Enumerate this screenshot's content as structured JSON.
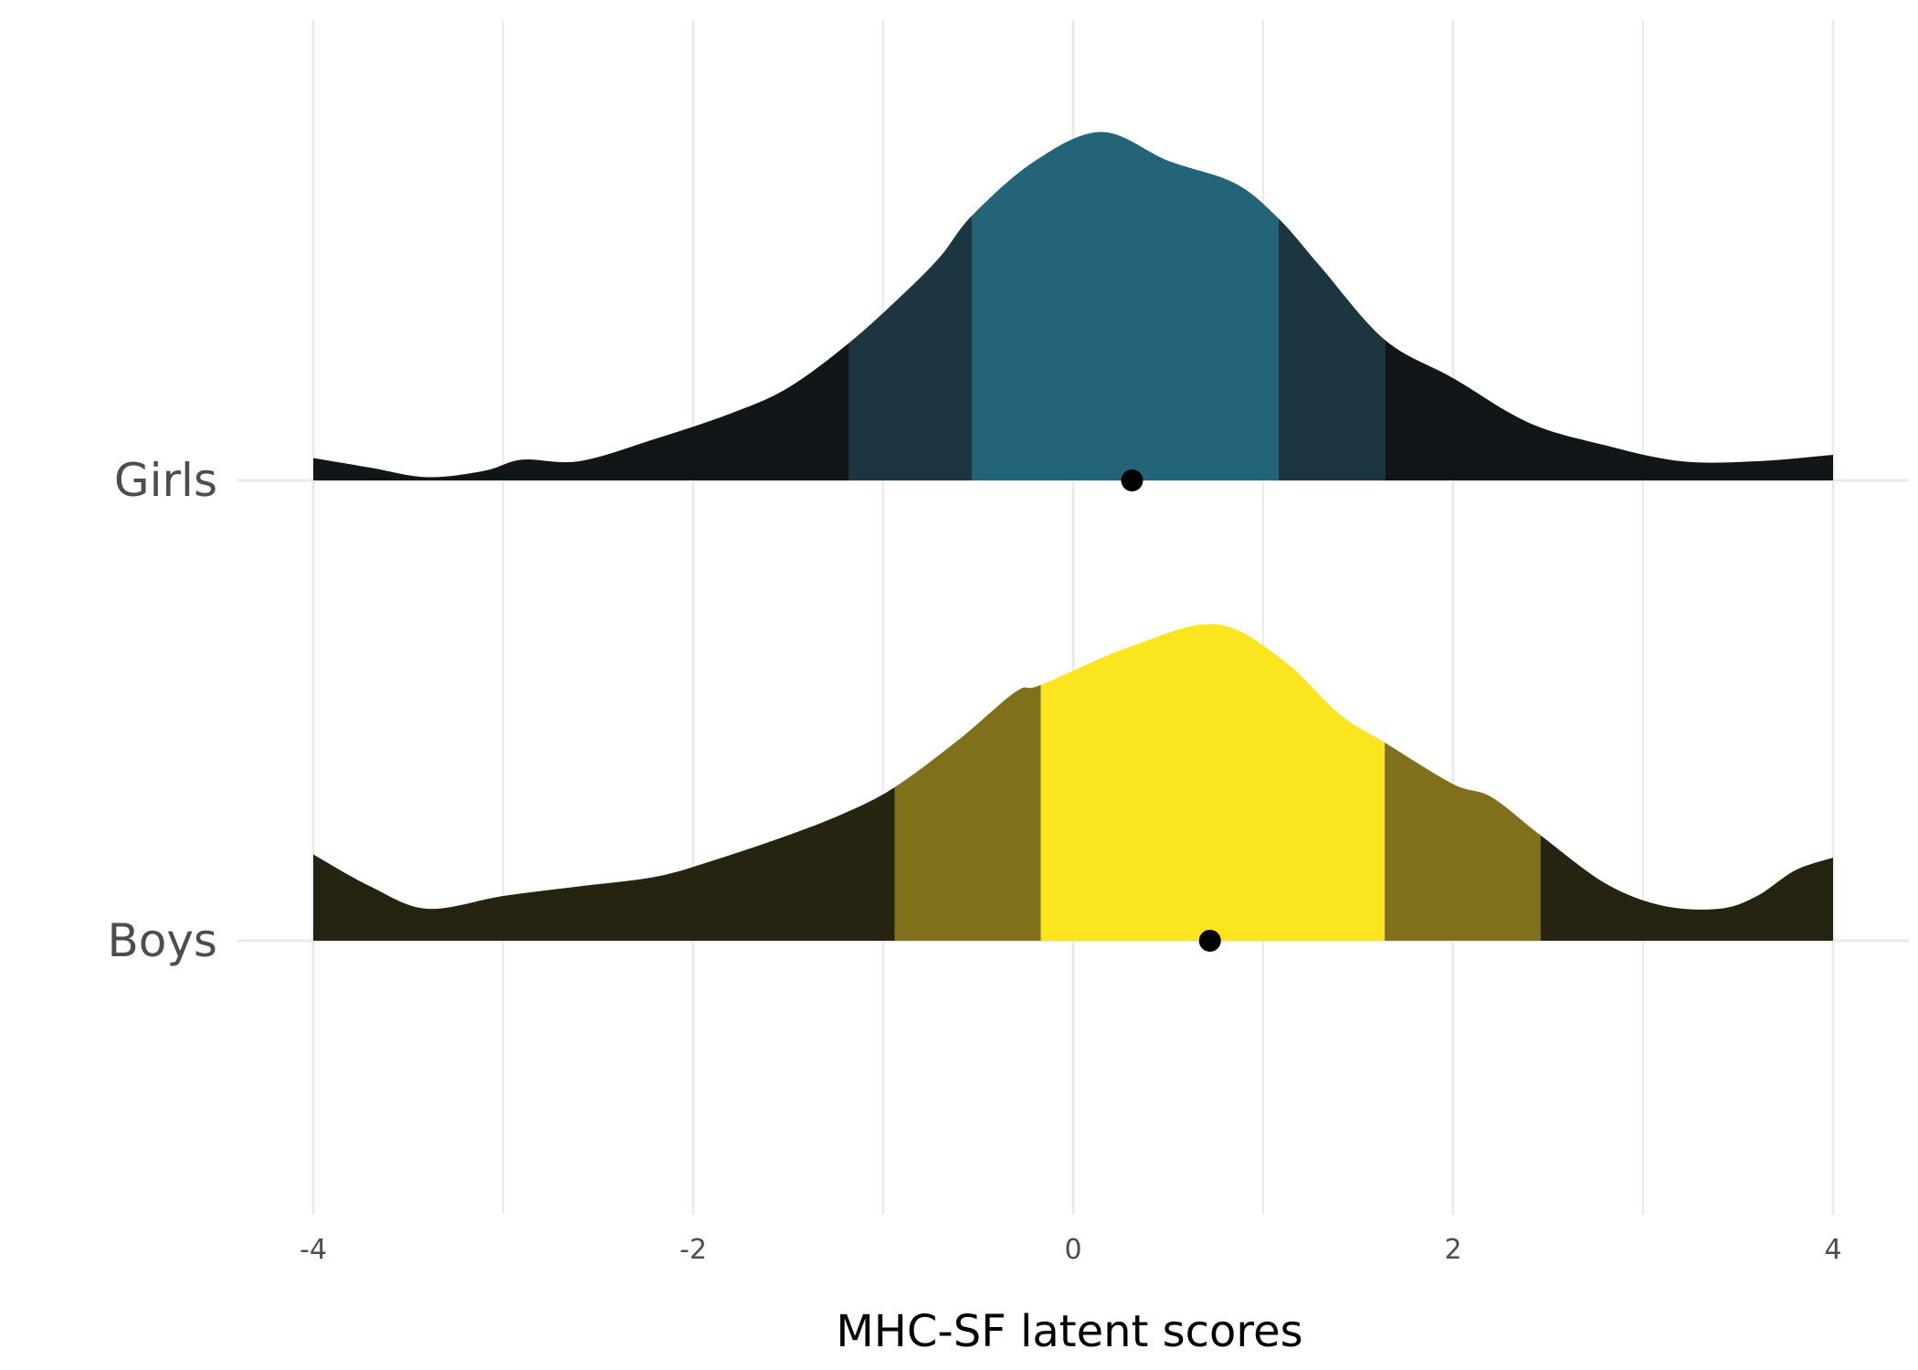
{
  "chart_data": {
    "type": "ridgeline",
    "xlabel": "MHC-SF latent scores",
    "ylabel": "",
    "xlim": [
      -4,
      4
    ],
    "x_ticks": [
      "-4",
      "-2",
      "0",
      "2",
      "4"
    ],
    "x_tick_values": [
      -4,
      -2,
      0,
      2,
      4
    ],
    "grid": true,
    "legend": "none",
    "categories": [
      "Girls",
      "Boys"
    ],
    "series": [
      {
        "name": "Girls",
        "mean": 0.31,
        "intervals": {
          "inner": [
            -0.53,
            1.08
          ],
          "outer": [
            -1.18,
            1.64
          ]
        },
        "colors": {
          "inner": "#236479",
          "mid": "#1c3641",
          "outer": "#111719"
        },
        "density": [
          [
            -4.0,
            0.07
          ],
          [
            -3.7,
            0.04
          ],
          [
            -3.4,
            0.01
          ],
          [
            -3.1,
            0.03
          ],
          [
            -2.9,
            0.065
          ],
          [
            -2.6,
            0.06
          ],
          [
            -2.2,
            0.13
          ],
          [
            -1.8,
            0.21
          ],
          [
            -1.5,
            0.29
          ],
          [
            -1.18,
            0.43
          ],
          [
            -0.9,
            0.58
          ],
          [
            -0.7,
            0.7
          ],
          [
            -0.53,
            0.83
          ],
          [
            -0.2,
            1.0
          ],
          [
            0.15,
            1.09
          ],
          [
            0.5,
            1.0
          ],
          [
            0.85,
            0.93
          ],
          [
            1.08,
            0.82
          ],
          [
            1.3,
            0.67
          ],
          [
            1.64,
            0.44
          ],
          [
            2.0,
            0.32
          ],
          [
            2.4,
            0.18
          ],
          [
            2.8,
            0.11
          ],
          [
            3.2,
            0.06
          ],
          [
            3.6,
            0.06
          ],
          [
            4.0,
            0.08
          ]
        ]
      },
      {
        "name": "Boys",
        "mean": 0.72,
        "intervals": {
          "inner": [
            -0.17,
            1.64
          ],
          "outer": [
            -0.94,
            2.46
          ]
        },
        "colors": {
          "inner": "#fbe51f",
          "mid": "#80701b",
          "outer": "#262311"
        },
        "density": [
          [
            -4.0,
            0.27
          ],
          [
            -3.7,
            0.17
          ],
          [
            -3.4,
            0.1
          ],
          [
            -3.0,
            0.14
          ],
          [
            -2.6,
            0.17
          ],
          [
            -2.2,
            0.2
          ],
          [
            -1.9,
            0.25
          ],
          [
            -1.5,
            0.33
          ],
          [
            -1.2,
            0.4
          ],
          [
            -0.94,
            0.48
          ],
          [
            -0.6,
            0.63
          ],
          [
            -0.3,
            0.78
          ],
          [
            -0.17,
            0.8
          ],
          [
            0.3,
            0.92
          ],
          [
            0.75,
            0.99
          ],
          [
            1.1,
            0.88
          ],
          [
            1.4,
            0.71
          ],
          [
            1.64,
            0.62
          ],
          [
            2.0,
            0.49
          ],
          [
            2.2,
            0.45
          ],
          [
            2.46,
            0.33
          ],
          [
            2.8,
            0.18
          ],
          [
            3.1,
            0.11
          ],
          [
            3.4,
            0.1
          ],
          [
            3.6,
            0.14
          ],
          [
            3.8,
            0.22
          ],
          [
            4.0,
            0.26
          ]
        ]
      }
    ]
  }
}
